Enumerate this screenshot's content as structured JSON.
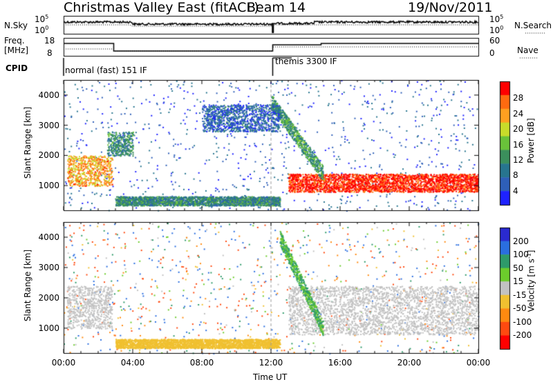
{
  "header": {
    "title": "Christmas Valley East (fitACF)",
    "beam": "Beam 14",
    "date": "19/Nov/2011"
  },
  "labels": {
    "n_sky": "N.Sky",
    "n_search": "N.Search",
    "freq": "Freq.",
    "freq_unit": "[MHz]",
    "nave": "Nave",
    "cpid": "CPID",
    "cpid_mode_1": "normal (fast) 151 IF",
    "cpid_mode_2": "themis 3300 IF",
    "n_left_ticks": [
      "10^5",
      "10^0"
    ],
    "n_right_ticks": [
      "10^5",
      "10^0"
    ],
    "freq_ticks": [
      "18",
      "8"
    ],
    "nave_ticks": [
      "60",
      "0"
    ]
  },
  "colors": {
    "power_scale": [
      "#1e22ff",
      "#2e5fb8",
      "#27758f",
      "#3b8f5c",
      "#69c23a",
      "#c8dc2a",
      "#ffa020",
      "#ff6a10",
      "#ff0000"
    ],
    "velocity_scale": [
      "#2a2ad0",
      "#2a6ee0",
      "#2e9a6a",
      "#6ccc2c",
      "#c2c2c2",
      "#f0c030",
      "#ff8a10",
      "#ff4a10",
      "#ff0000"
    ]
  },
  "chart_data": [
    {
      "type": "heatmap",
      "name": "power-panel",
      "ylabel": "Slant Range [km]",
      "xlabel": "",
      "y_ticks": [
        "4000",
        "3000",
        "2000",
        "1000"
      ],
      "ylim": [
        180,
        4500
      ],
      "colorbar": {
        "label": "Power [dB]",
        "ticks": [
          "28",
          "24",
          "20",
          "16",
          "12",
          "8",
          "4"
        ],
        "range": [
          0,
          30
        ]
      },
      "time_ticks": [
        "00:00",
        "04:00",
        "08:00",
        "12:00",
        "16:00",
        "20:00",
        "00:00"
      ],
      "features": [
        {
          "t": [
            0.2,
            2.8
          ],
          "range": [
            1000,
            2000
          ],
          "power_db": 22
        },
        {
          "t": [
            13.0,
            24.0
          ],
          "range": [
            800,
            1400
          ],
          "power_db": 28
        },
        {
          "t": [
            12.0,
            15.0
          ],
          "range": [
            1400,
            3800
          ],
          "power_db": 12
        },
        {
          "t": [
            2.5,
            4.0
          ],
          "range": [
            2000,
            2800
          ],
          "power_db": 10
        },
        {
          "t": [
            3.0,
            12.5
          ],
          "range": [
            350,
            650
          ],
          "power_db": 10
        },
        {
          "t": [
            8.0,
            12.5
          ],
          "range": [
            2800,
            3700
          ],
          "power_db": 6
        }
      ]
    },
    {
      "type": "heatmap",
      "name": "velocity-panel",
      "ylabel": "Slant Range [km]",
      "xlabel": "Time UT",
      "y_ticks": [
        "4000",
        "3000",
        "2000",
        "1000"
      ],
      "ylim": [
        180,
        4500
      ],
      "colorbar": {
        "label": "Velocity [m s-1]",
        "ticks": [
          "200",
          "100",
          "50",
          "15",
          "-15",
          "-50",
          "-100",
          "-200"
        ],
        "range": [
          -250,
          250
        ]
      },
      "time_ticks": [
        "00:00",
        "04:00",
        "08:00",
        "12:00",
        "16:00",
        "20:00",
        "00:00"
      ],
      "features": [
        {
          "t": [
            0.2,
            2.8
          ],
          "range": [
            1000,
            2400
          ],
          "velocity": 0
        },
        {
          "t": [
            13.0,
            24.0
          ],
          "range": [
            800,
            2400
          ],
          "velocity": 0
        },
        {
          "t": [
            12.5,
            15.0
          ],
          "range": [
            1000,
            4000
          ],
          "velocity": 50
        },
        {
          "t": [
            3.0,
            12.5
          ],
          "range": [
            350,
            650
          ],
          "velocity": -30
        }
      ]
    }
  ]
}
